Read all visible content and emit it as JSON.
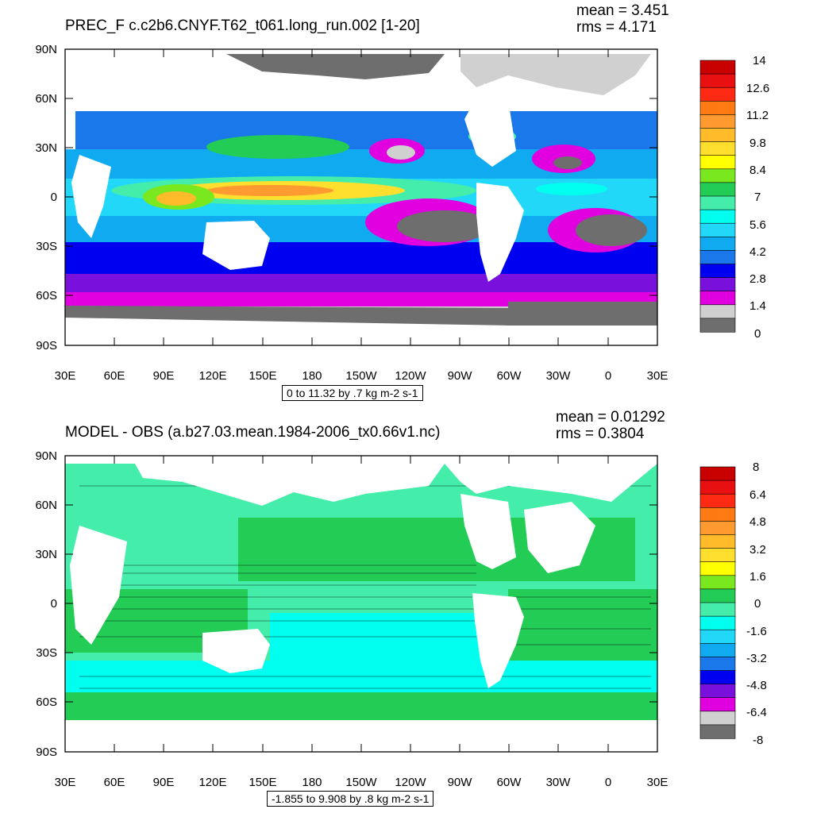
{
  "panels": [
    {
      "title": "PREC_F c.c2b6.CNYF.T62_t061.long_run.002 [1-20]",
      "mean": "mean = 3.451",
      "rms": "rms = 4.171",
      "info": "0 to 11.32 by .7 kg m-2 s-1",
      "colorbar_labels": [
        "14",
        "12.6",
        "11.2",
        "9.8",
        "8.4",
        "7",
        "5.6",
        "4.2",
        "2.8",
        "1.4",
        "0"
      ],
      "colorbar_colors": [
        "#c80000",
        "#e81010",
        "#ff2a14",
        "#ff7a12",
        "#ff9a30",
        "#ffbb2a",
        "#ffdf2e",
        "#ffff00",
        "#7ae81e",
        "#22cc55",
        "#44eeaa",
        "#00ffee",
        "#22d8f8",
        "#10aaf0",
        "#1a78ea",
        "#0000f0",
        "#7a10dc",
        "#e000e0",
        "#d0d0d0",
        "#6e6e6e"
      ]
    },
    {
      "title": "MODEL - OBS (a.b27.03.mean.1984-2006_tx0.66v1.nc)",
      "mean": "mean = 0.01292",
      "rms": "rms = 0.3804",
      "info": "-1.855 to 9.908 by .8 kg m-2 s-1",
      "colorbar_labels": [
        "8",
        "6.4",
        "4.8",
        "3.2",
        "1.6",
        "0",
        "-1.6",
        "-3.2",
        "-4.8",
        "-6.4",
        "-8"
      ],
      "colorbar_colors": [
        "#c80000",
        "#e81010",
        "#ff2a14",
        "#ff7a12",
        "#ff9a30",
        "#ffbb2a",
        "#ffdf2e",
        "#ffff00",
        "#7ae81e",
        "#22cc55",
        "#44eeaa",
        "#00ffee",
        "#22d8f8",
        "#10aaf0",
        "#1a78ea",
        "#0000f0",
        "#7a10dc",
        "#e000e0",
        "#d0d0d0",
        "#6e6e6e"
      ]
    }
  ],
  "axes": {
    "lat_labels": [
      "90N",
      "60N",
      "30N",
      "0",
      "30S",
      "60S",
      "90S"
    ],
    "lon_labels": [
      "30E",
      "60E",
      "90E",
      "120E",
      "150E",
      "180",
      "150W",
      "120W",
      "90W",
      "60W",
      "30W",
      "0",
      "30E"
    ]
  }
}
